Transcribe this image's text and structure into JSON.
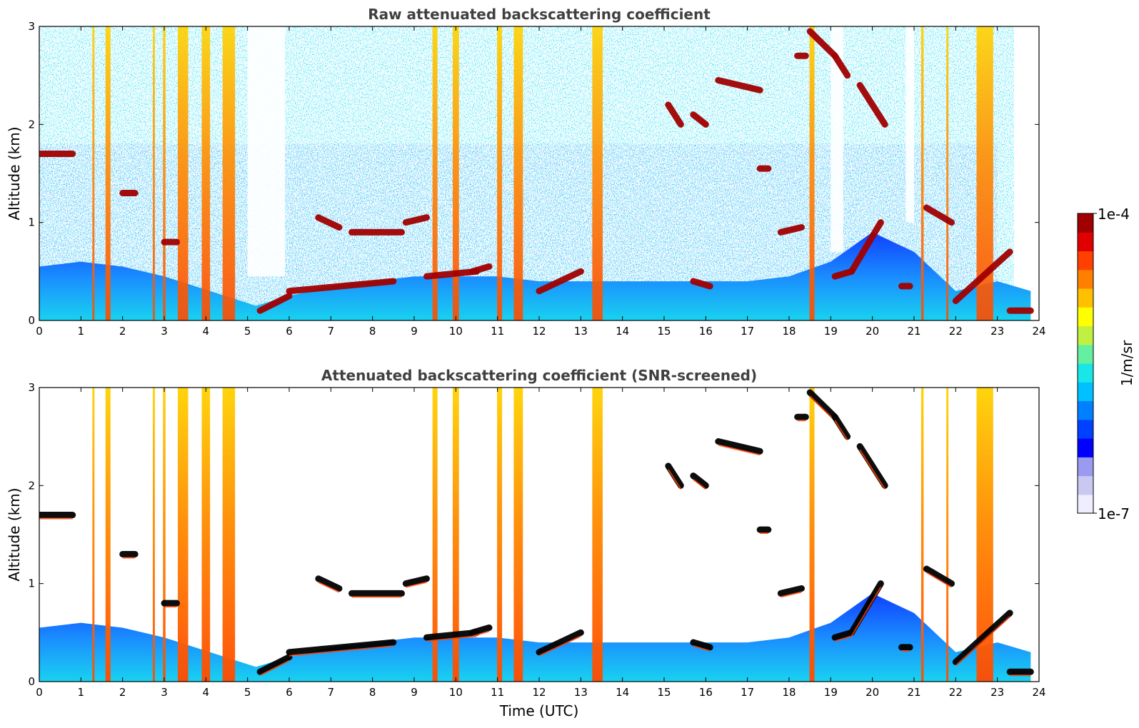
{
  "colors": {
    "colormap": [
      "#eeeeff",
      "#c8c8f2",
      "#9a9af0",
      "#0000ff",
      "#0040ff",
      "#0080ff",
      "#00c0ff",
      "#19e6e6",
      "#64f0a0",
      "#c0f040",
      "#ffff00",
      "#ffc000",
      "#ff8000",
      "#ff4000",
      "#e00000",
      "#a00000"
    ],
    "cloud_saturated": "#000000",
    "axis": "#000000",
    "background": "#ffffff"
  },
  "chart_data": [
    {
      "type": "heatmap",
      "title": "Raw attenuated backscattering coefficient",
      "xlabel": "",
      "ylabel": "Altitude (km)",
      "xlim": [
        0,
        24
      ],
      "ylim": [
        0,
        3
      ],
      "xticks": [
        "0",
        "1",
        "2",
        "3",
        "4",
        "5",
        "6",
        "7",
        "8",
        "9",
        "10",
        "11",
        "12",
        "13",
        "14",
        "15",
        "16",
        "17",
        "18",
        "19",
        "20",
        "21",
        "22",
        "23",
        "24"
      ],
      "yticks": [
        "0",
        "1",
        "2",
        "3"
      ],
      "screened": false
    },
    {
      "type": "heatmap",
      "title": "Attenuated backscattering coefficient (SNR-screened)",
      "xlabel": "Time (UTC)",
      "ylabel": "Altitude (km)",
      "xlim": [
        0,
        24
      ],
      "ylim": [
        0,
        3
      ],
      "xticks": [
        "0",
        "1",
        "2",
        "3",
        "4",
        "5",
        "6",
        "7",
        "8",
        "9",
        "10",
        "11",
        "12",
        "13",
        "14",
        "15",
        "16",
        "17",
        "18",
        "19",
        "20",
        "21",
        "22",
        "23",
        "24"
      ],
      "yticks": [
        "0",
        "1",
        "2",
        "3"
      ],
      "screened": true
    }
  ],
  "colorbar": {
    "label": "1/m/sr",
    "max_label": "1e-4",
    "min_label": "1e-7",
    "scale": "log",
    "range": [
      1e-07,
      0.0001
    ]
  },
  "features": {
    "boundary_layer": [
      [
        0,
        0.55
      ],
      [
        1,
        0.6
      ],
      [
        2,
        0.55
      ],
      [
        3,
        0.45
      ],
      [
        5.2,
        0.15
      ],
      [
        6,
        0.25
      ],
      [
        7,
        0.35
      ],
      [
        8,
        0.4
      ],
      [
        9,
        0.45
      ],
      [
        10,
        0.45
      ],
      [
        11,
        0.45
      ],
      [
        12,
        0.4
      ],
      [
        13,
        0.4
      ],
      [
        14,
        0.4
      ],
      [
        15,
        0.4
      ],
      [
        16,
        0.4
      ],
      [
        17,
        0.4
      ],
      [
        18,
        0.45
      ],
      [
        19,
        0.6
      ],
      [
        20,
        0.9
      ],
      [
        21,
        0.7
      ],
      [
        22,
        0.3
      ],
      [
        23,
        0.4
      ],
      [
        23.8,
        0.3
      ]
    ],
    "precip_columns": [
      [
        1.3,
        0.05
      ],
      [
        1.65,
        0.12
      ],
      [
        2.75,
        0.05
      ],
      [
        3.0,
        0.06
      ],
      [
        3.45,
        0.25
      ],
      [
        4.0,
        0.2
      ],
      [
        4.55,
        0.3
      ],
      [
        9.5,
        0.12
      ],
      [
        10.0,
        0.15
      ],
      [
        11.05,
        0.12
      ],
      [
        11.5,
        0.22
      ],
      [
        13.4,
        0.25
      ],
      [
        18.55,
        0.12
      ],
      [
        21.2,
        0.06
      ],
      [
        21.8,
        0.05
      ],
      [
        22.7,
        0.4
      ]
    ],
    "cloud_layers": [
      {
        "from": [
          0.0,
          1.7
        ],
        "to": [
          0.8,
          1.7
        ]
      },
      {
        "from": [
          2.0,
          1.3
        ],
        "to": [
          2.3,
          1.3
        ]
      },
      {
        "from": [
          3.0,
          0.8
        ],
        "to": [
          3.3,
          0.8
        ]
      },
      {
        "from": [
          5.3,
          0.1
        ],
        "to": [
          6.0,
          0.25
        ]
      },
      {
        "from": [
          6.0,
          0.3
        ],
        "to": [
          8.5,
          0.4
        ]
      },
      {
        "from": [
          6.7,
          1.05
        ],
        "to": [
          7.2,
          0.95
        ]
      },
      {
        "from": [
          7.5,
          0.9
        ],
        "to": [
          8.7,
          0.9
        ]
      },
      {
        "from": [
          8.8,
          1.0
        ],
        "to": [
          9.3,
          1.05
        ]
      },
      {
        "from": [
          9.3,
          0.45
        ],
        "to": [
          10.5,
          0.5
        ]
      },
      {
        "from": [
          10.4,
          0.5
        ],
        "to": [
          10.8,
          0.55
        ]
      },
      {
        "from": [
          12.0,
          0.3
        ],
        "to": [
          13.0,
          0.5
        ]
      },
      {
        "from": [
          15.1,
          2.2
        ],
        "to": [
          15.4,
          2.0
        ]
      },
      {
        "from": [
          15.7,
          2.1
        ],
        "to": [
          16.0,
          2.0
        ]
      },
      {
        "from": [
          16.3,
          2.45
        ],
        "to": [
          17.3,
          2.35
        ]
      },
      {
        "from": [
          15.7,
          0.4
        ],
        "to": [
          16.1,
          0.35
        ]
      },
      {
        "from": [
          17.3,
          1.55
        ],
        "to": [
          17.5,
          1.55
        ]
      },
      {
        "from": [
          18.2,
          2.7
        ],
        "to": [
          18.4,
          2.7
        ]
      },
      {
        "from": [
          18.5,
          2.95
        ],
        "to": [
          19.1,
          2.7
        ]
      },
      {
        "from": [
          19.1,
          2.7
        ],
        "to": [
          19.4,
          2.5
        ]
      },
      {
        "from": [
          19.7,
          2.4
        ],
        "to": [
          20.3,
          2.0
        ]
      },
      {
        "from": [
          17.8,
          0.9
        ],
        "to": [
          18.3,
          0.95
        ]
      },
      {
        "from": [
          19.1,
          0.45
        ],
        "to": [
          19.5,
          0.5
        ]
      },
      {
        "from": [
          19.5,
          0.5
        ],
        "to": [
          20.2,
          1.0
        ]
      },
      {
        "from": [
          20.7,
          0.35
        ],
        "to": [
          20.9,
          0.35
        ]
      },
      {
        "from": [
          21.3,
          1.15
        ],
        "to": [
          21.9,
          1.0
        ]
      },
      {
        "from": [
          22.0,
          0.2
        ],
        "to": [
          23.3,
          0.7
        ]
      },
      {
        "from": [
          23.3,
          0.1
        ],
        "to": [
          23.8,
          0.1
        ]
      }
    ],
    "noise_gaps": [
      [
        5.0,
        5.9,
        0.45
      ],
      [
        19.0,
        19.3,
        0.7
      ],
      [
        20.8,
        21.0,
        1.0
      ],
      [
        23.4,
        24.0,
        0.3
      ]
    ]
  }
}
